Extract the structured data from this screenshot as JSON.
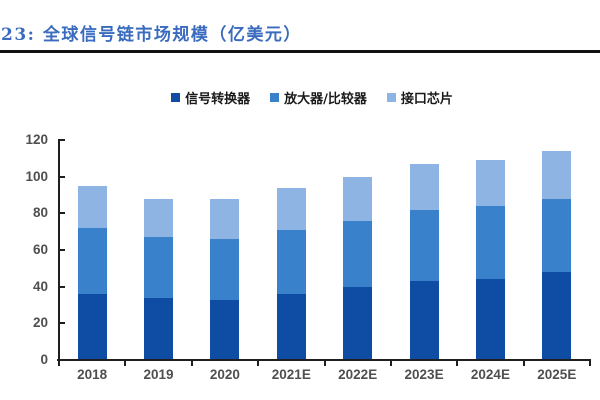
{
  "header": {
    "title": "23: 全球信号链市场规模（亿美元）"
  },
  "colors": {
    "title": "#3A6BBE",
    "top_rule": "#111111",
    "axis_line": "#1F1F1F",
    "tick_label": "#4F4F4F",
    "legend_text": "#1A1A1A",
    "background": "#FFFFFF"
  },
  "chart_data": {
    "type": "bar",
    "stacked": true,
    "title": "全球信号链市场规模（亿美元）",
    "unit": "亿美元",
    "categories": [
      "2018",
      "2019",
      "2020",
      "2021E",
      "2022E",
      "2023E",
      "2024E",
      "2025E"
    ],
    "series": [
      {
        "name": "信号转换器",
        "color": "#0E4DA3",
        "values": [
          36,
          34,
          33,
          36,
          40,
          43,
          44,
          48
        ]
      },
      {
        "name": "放大器/比较器",
        "color": "#3981CA",
        "values": [
          36,
          33,
          33,
          35,
          36,
          39,
          40,
          40
        ]
      },
      {
        "name": "接口芯片",
        "color": "#8DB4E2",
        "values": [
          23,
          21,
          22,
          23,
          24,
          25,
          25,
          26
        ]
      }
    ],
    "totals": [
      95,
      88,
      88,
      94,
      100,
      107,
      109,
      114
    ],
    "ylim": [
      0,
      120
    ],
    "ytick_step": 20,
    "grid": false,
    "legend_position": "top-center"
  }
}
